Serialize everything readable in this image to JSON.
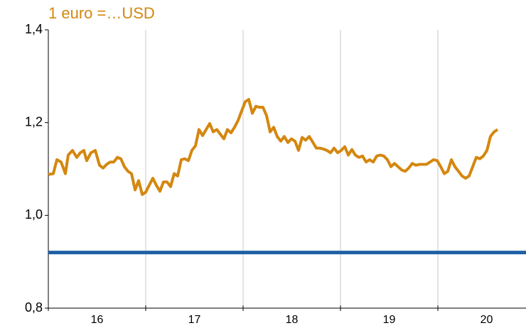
{
  "chart_data": {
    "type": "line",
    "title": "1 euro =…USD",
    "categories": [
      "16",
      "17",
      "18",
      "19",
      "20"
    ],
    "xlim": [
      16,
      20.905
    ],
    "xticks": [
      16,
      17,
      18,
      19,
      20
    ],
    "ylim": [
      0.8,
      1.4
    ],
    "yticks": [
      {
        "value": 0.8,
        "label": "0,8"
      },
      {
        "value": 1.0,
        "label": "1,0"
      },
      {
        "value": 1.2,
        "label": "1,2"
      },
      {
        "value": 1.4,
        "label": "1,4"
      }
    ],
    "vertical_grid": true,
    "reference_line": {
      "value": 0.92,
      "color": "#1f5fa6"
    },
    "series": [
      {
        "color": "#d4870f",
        "x": [
          16.0,
          16.051,
          16.088,
          16.131,
          16.175,
          16.204,
          16.248,
          16.292,
          16.328,
          16.365,
          16.394,
          16.438,
          16.482,
          16.526,
          16.562,
          16.599,
          16.635,
          16.672,
          16.708,
          16.745,
          16.781,
          16.818,
          16.854,
          16.891,
          16.927,
          16.964,
          17.0,
          17.036,
          17.073,
          17.109,
          17.146,
          17.182,
          17.219,
          17.255,
          17.292,
          17.328,
          17.365,
          17.401,
          17.438,
          17.474,
          17.511,
          17.547,
          17.584,
          17.62,
          17.657,
          17.693,
          17.73,
          17.766,
          17.803,
          17.839,
          17.876,
          17.912,
          17.949,
          17.985,
          18.022,
          18.058,
          18.095,
          18.131,
          18.168,
          18.204,
          18.241,
          18.277,
          18.314,
          18.35,
          18.387,
          18.423,
          18.46,
          18.496,
          18.533,
          18.569,
          18.606,
          18.642,
          18.679,
          18.715,
          18.752,
          18.788,
          18.825,
          18.861,
          18.898,
          18.934,
          18.971,
          19.007,
          19.044,
          19.08,
          19.117,
          19.153,
          19.19,
          19.226,
          19.263,
          19.299,
          19.336,
          19.372,
          19.409,
          19.445,
          19.482,
          19.518,
          19.555,
          19.591,
          19.628,
          19.664,
          19.701,
          19.737,
          19.774,
          19.81,
          19.847,
          19.883,
          19.92,
          19.956,
          19.993,
          20.029,
          20.066,
          20.102,
          20.139,
          20.175,
          20.212,
          20.248,
          20.285,
          20.321,
          20.358,
          20.394,
          20.431,
          20.467,
          20.504,
          20.54,
          20.577,
          20.613
        ],
        "values": [
          1.088,
          1.09,
          1.12,
          1.115,
          1.09,
          1.13,
          1.14,
          1.125,
          1.135,
          1.14,
          1.118,
          1.135,
          1.14,
          1.108,
          1.102,
          1.11,
          1.115,
          1.115,
          1.125,
          1.122,
          1.105,
          1.095,
          1.09,
          1.055,
          1.075,
          1.045,
          1.05,
          1.065,
          1.08,
          1.065,
          1.052,
          1.072,
          1.072,
          1.062,
          1.09,
          1.085,
          1.12,
          1.122,
          1.118,
          1.14,
          1.15,
          1.185,
          1.172,
          1.185,
          1.198,
          1.18,
          1.185,
          1.175,
          1.165,
          1.185,
          1.178,
          1.19,
          1.205,
          1.225,
          1.245,
          1.25,
          1.22,
          1.235,
          1.233,
          1.233,
          1.215,
          1.18,
          1.19,
          1.17,
          1.16,
          1.17,
          1.157,
          1.165,
          1.16,
          1.14,
          1.168,
          1.162,
          1.17,
          1.158,
          1.145,
          1.145,
          1.143,
          1.14,
          1.135,
          1.145,
          1.135,
          1.14,
          1.148,
          1.13,
          1.142,
          1.13,
          1.125,
          1.128,
          1.115,
          1.12,
          1.115,
          1.128,
          1.13,
          1.128,
          1.12,
          1.105,
          1.112,
          1.105,
          1.098,
          1.095,
          1.102,
          1.112,
          1.108,
          1.11,
          1.11,
          1.11,
          1.115,
          1.12,
          1.118,
          1.105,
          1.09,
          1.095,
          1.12,
          1.105,
          1.095,
          1.085,
          1.08,
          1.085,
          1.105,
          1.125,
          1.122,
          1.128,
          1.14,
          1.17,
          1.18,
          1.185
        ]
      }
    ]
  }
}
